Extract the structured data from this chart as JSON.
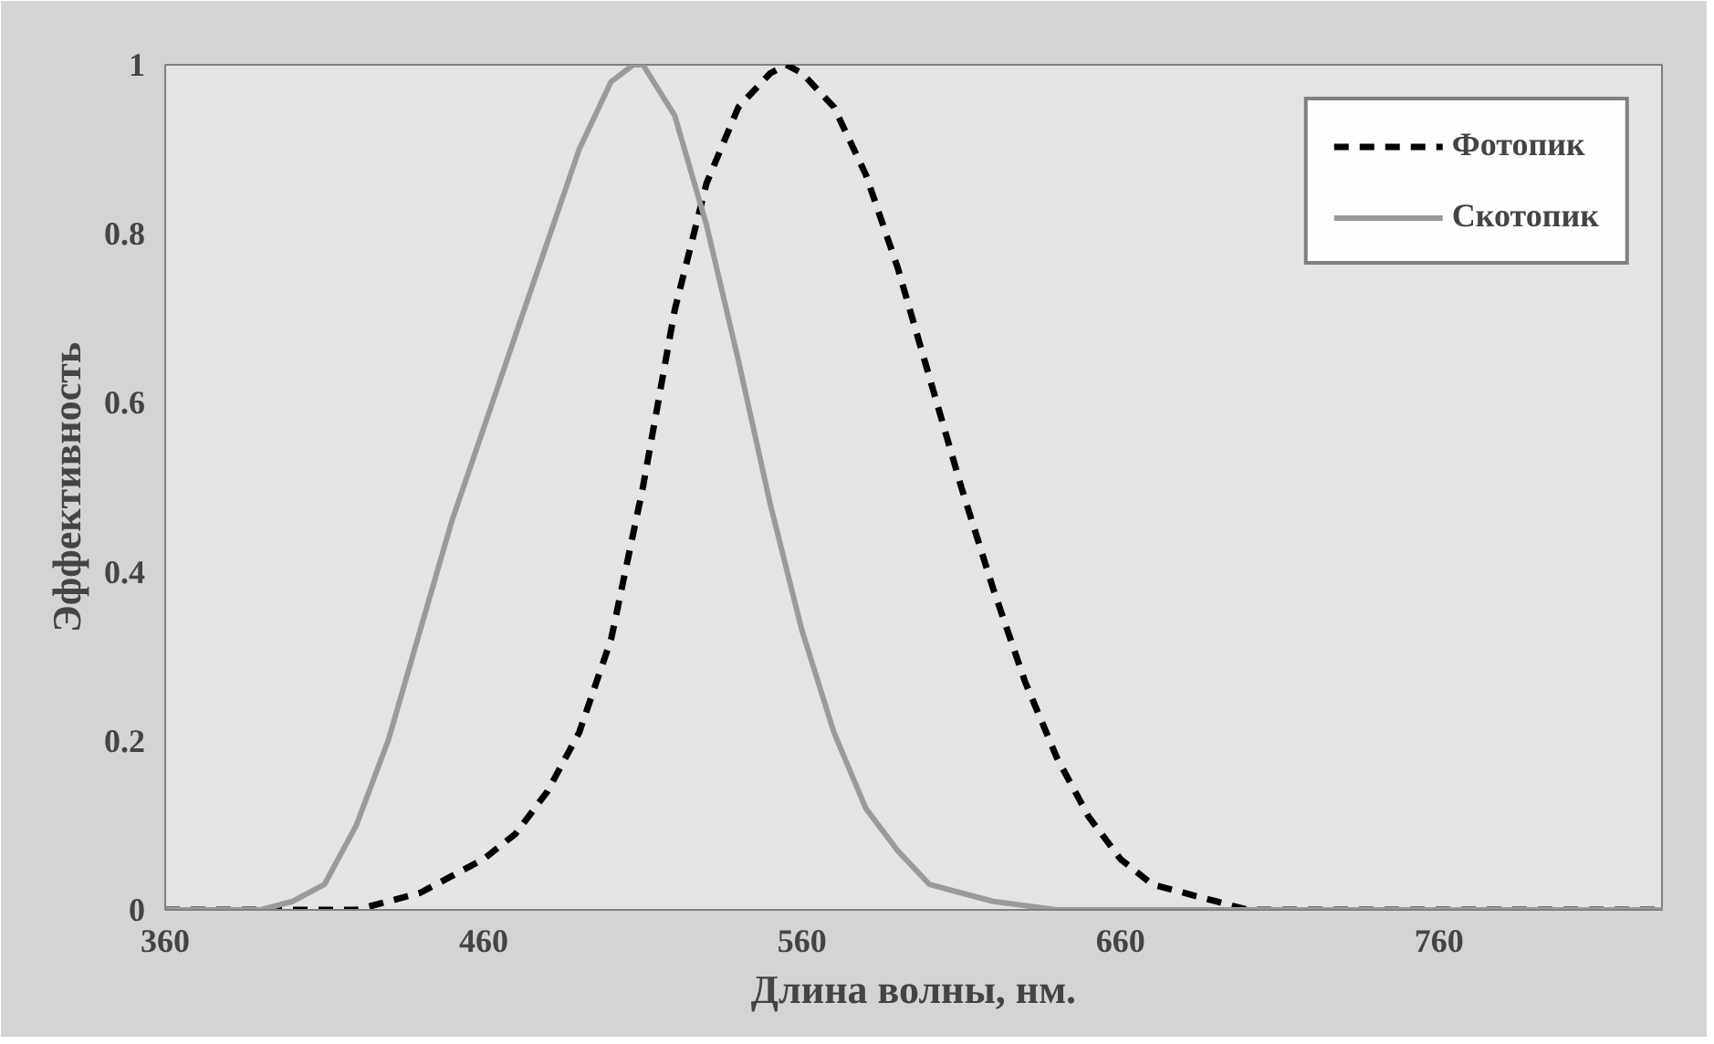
{
  "chart_data": {
    "type": "line",
    "xlabel": "Длина волны, нм.",
    "ylabel": "Эффективность",
    "xlim": [
      360,
      830
    ],
    "ylim": [
      0,
      1
    ],
    "xticks": [
      360,
      460,
      560,
      660,
      760
    ],
    "yticks": [
      0,
      0.2,
      0.4,
      0.6,
      0.8,
      1
    ],
    "grid": false,
    "legend": "top right",
    "marker": "none",
    "series": [
      {
        "name": "Фотопик",
        "color": "#000000",
        "line_style": "dashed",
        "x": [
          360,
          380,
          400,
          420,
          430,
          440,
          450,
          460,
          470,
          480,
          490,
          500,
          510,
          520,
          530,
          540,
          550,
          555,
          560,
          570,
          580,
          590,
          600,
          610,
          620,
          630,
          640,
          650,
          660,
          670,
          680,
          690,
          700,
          720,
          760,
          800,
          830
        ],
        "values": [
          0,
          0,
          0,
          0,
          0.01,
          0.02,
          0.04,
          0.06,
          0.09,
          0.14,
          0.21,
          0.32,
          0.5,
          0.71,
          0.86,
          0.95,
          0.99,
          1,
          0.99,
          0.95,
          0.87,
          0.76,
          0.63,
          0.5,
          0.38,
          0.27,
          0.18,
          0.11,
          0.06,
          0.03,
          0.02,
          0.01,
          0,
          0,
          0,
          0,
          0
        ]
      },
      {
        "name": "Скотопик",
        "color": "#9a9a9a",
        "line_style": "solid",
        "x": [
          360,
          380,
          390,
          400,
          410,
          420,
          430,
          440,
          450,
          460,
          470,
          480,
          490,
          500,
          507,
          510,
          520,
          530,
          540,
          550,
          560,
          570,
          580,
          590,
          600,
          610,
          620,
          640,
          660,
          700,
          760,
          830
        ],
        "values": [
          0,
          0,
          0,
          0.01,
          0.03,
          0.1,
          0.2,
          0.33,
          0.46,
          0.57,
          0.68,
          0.79,
          0.9,
          0.98,
          1,
          1,
          0.94,
          0.81,
          0.65,
          0.48,
          0.33,
          0.21,
          0.12,
          0.07,
          0.03,
          0.02,
          0.01,
          0,
          0,
          0,
          0,
          0
        ]
      }
    ]
  }
}
